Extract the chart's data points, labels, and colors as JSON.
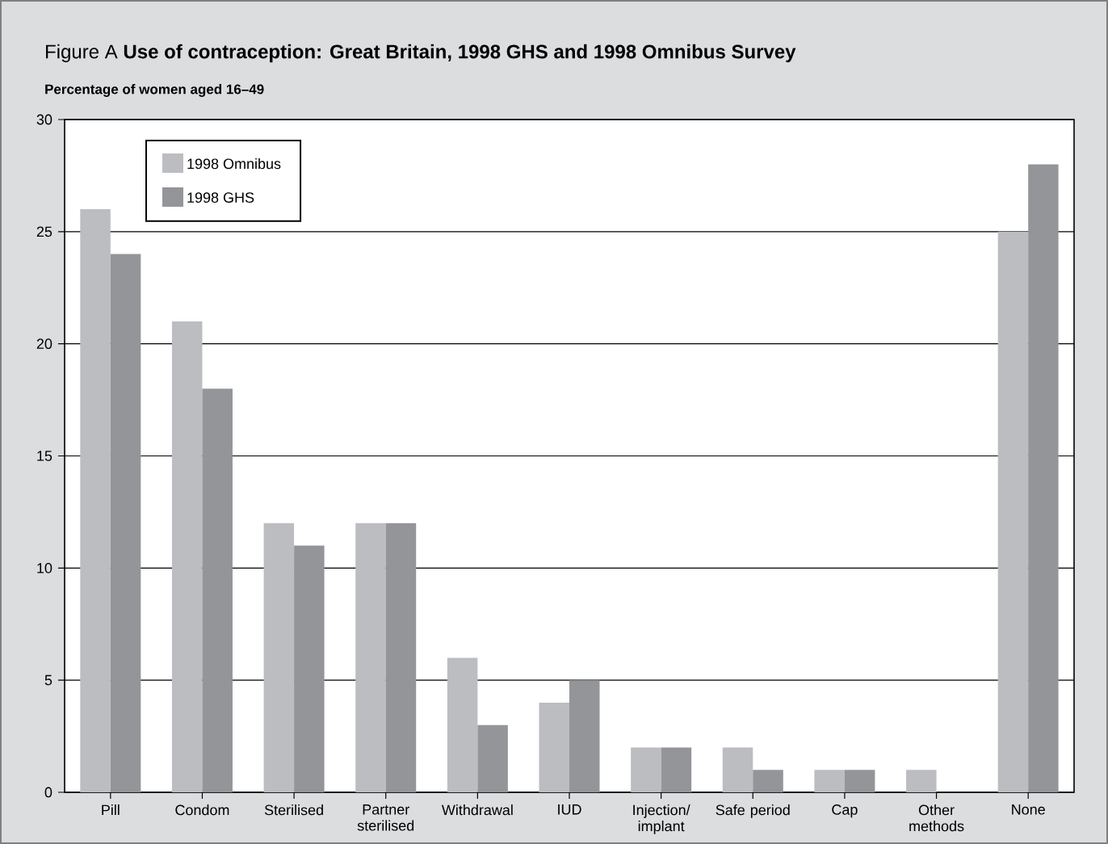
{
  "chart_data": {
    "type": "bar",
    "title": "Figure A   **Use of contraception: Great Britain, 1998 GHS and 1998 Omnibus Survey**",
    "ylabel": "Percentage of women aged 16–49",
    "categories": [
      "Pill",
      "Condom",
      "Sterilised",
      "Partner sterilised",
      "Withdrawal",
      "IUD",
      "Injection/ implant",
      "Safe period",
      "Cap",
      "Other methods",
      "None"
    ],
    "series": [
      {
        "name": "1998 Omnibus",
        "color": "#bcbdc1",
        "values": [
          26,
          21,
          12,
          12,
          6,
          4,
          2,
          2,
          1,
          1,
          25
        ]
      },
      {
        "name": "1998 GHS",
        "color": "#939598",
        "values": [
          24,
          18,
          11,
          12,
          3,
          5,
          2,
          1,
          1,
          0,
          28
        ]
      }
    ],
    "ylim": [
      0,
      30
    ],
    "yticks": [
      0,
      5,
      10,
      15,
      20,
      25,
      30
    ],
    "grid": "y",
    "legend": "top left"
  }
}
